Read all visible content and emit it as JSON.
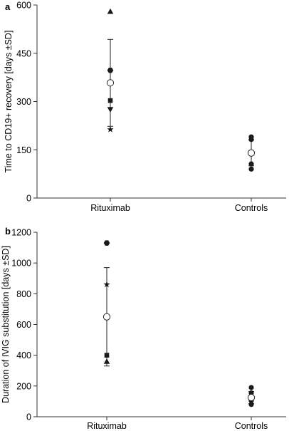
{
  "chart_data": [
    {
      "type": "scatter",
      "panel": "a",
      "ylabel": "Time to CD19+ recovery [days ±SD]",
      "xlabel": "",
      "categories": [
        "Rituximab",
        "Controls"
      ],
      "ylim": [
        0,
        600
      ],
      "yticks": [
        0,
        150,
        300,
        450,
        600
      ],
      "grid": false,
      "groups": [
        {
          "category": "Rituximab",
          "points": [
            {
              "value": 580,
              "marker": "triangle-up"
            },
            {
              "value": 397,
              "marker": "circle"
            },
            {
              "value": 397,
              "marker": "hexagon"
            },
            {
              "value": 303,
              "marker": "square"
            },
            {
              "value": 275,
              "marker": "triangle-down"
            },
            {
              "value": 213,
              "marker": "star"
            }
          ],
          "mean": 358,
          "sd": 135
        },
        {
          "category": "Controls",
          "points": [
            {
              "value": 190,
              "marker": "circle"
            },
            {
              "value": 182,
              "marker": "circle"
            },
            {
              "value": 106,
              "marker": "circle"
            },
            {
              "value": 90,
              "marker": "circle"
            }
          ],
          "mean": 140,
          "sd": 40
        }
      ]
    },
    {
      "type": "scatter",
      "panel": "b",
      "ylabel": "Duration of IVIG substitution [days ±SD]",
      "xlabel": "",
      "categories": [
        "Rituximab",
        "Controls"
      ],
      "ylim": [
        0,
        1200
      ],
      "yticks": [
        0,
        200,
        400,
        600,
        800,
        1000,
        1200
      ],
      "grid": false,
      "groups": [
        {
          "category": "Rituximab",
          "points": [
            {
              "value": 1130,
              "marker": "hexagon"
            },
            {
              "value": 860,
              "marker": "star"
            },
            {
              "value": 400,
              "marker": "square"
            },
            {
              "value": 360,
              "marker": "triangle-up"
            }
          ],
          "mean": 650,
          "sd": 320
        },
        {
          "category": "Controls",
          "points": [
            {
              "value": 190,
              "marker": "circle"
            },
            {
              "value": 155,
              "marker": "circle"
            },
            {
              "value": 105,
              "marker": "circle"
            },
            {
              "value": 80,
              "marker": "circle"
            }
          ],
          "mean": 125,
          "sd": 40
        }
      ]
    }
  ]
}
